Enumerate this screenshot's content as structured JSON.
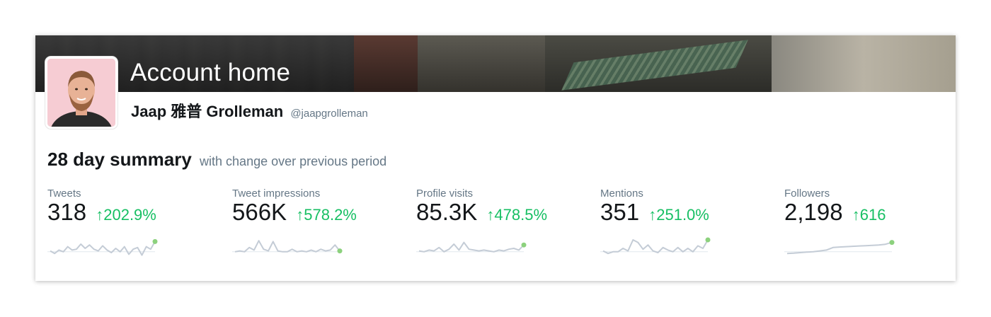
{
  "header": {
    "title": "Account home",
    "user_name": "Jaap 雅普 Grolleman",
    "user_handle": "@jaapgrolleman"
  },
  "summary": {
    "title": "28 day summary",
    "subtitle": "with change over previous period"
  },
  "metrics": [
    {
      "label": "Tweets",
      "value": "318",
      "arrow": "↑",
      "change": "202.9%",
      "spark": [
        0.35,
        0.2,
        0.4,
        0.3,
        0.6,
        0.4,
        0.45,
        0.75,
        0.5,
        0.7,
        0.45,
        0.35,
        0.65,
        0.4,
        0.25,
        0.5,
        0.3,
        0.6,
        0.15,
        0.45,
        0.55,
        0.1,
        0.6,
        0.45,
        0.9
      ]
    },
    {
      "label": "Tweet impressions",
      "value": "566K",
      "arrow": "↑",
      "change": "578.2%",
      "spark": [
        0.3,
        0.35,
        0.3,
        0.55,
        0.4,
        0.95,
        0.45,
        0.35,
        0.9,
        0.35,
        0.3,
        0.3,
        0.45,
        0.3,
        0.35,
        0.3,
        0.4,
        0.3,
        0.45,
        0.35,
        0.4,
        0.7,
        0.35
      ]
    },
    {
      "label": "Profile visits",
      "value": "85.3K",
      "arrow": "↑",
      "change": "478.5%",
      "spark": [
        0.35,
        0.3,
        0.4,
        0.35,
        0.55,
        0.3,
        0.45,
        0.75,
        0.4,
        0.85,
        0.45,
        0.4,
        0.35,
        0.4,
        0.35,
        0.3,
        0.4,
        0.35,
        0.45,
        0.5,
        0.4,
        0.7
      ]
    },
    {
      "label": "Mentions",
      "value": "351",
      "arrow": "↑",
      "change": "251.0%",
      "spark": [
        0.35,
        0.2,
        0.3,
        0.3,
        0.5,
        0.35,
        1.0,
        0.85,
        0.45,
        0.7,
        0.35,
        0.25,
        0.55,
        0.4,
        0.3,
        0.55,
        0.3,
        0.5,
        0.3,
        0.65,
        0.5,
        1.0
      ]
    },
    {
      "label": "Followers",
      "value": "2,198",
      "arrow": "↑",
      "change": "616",
      "spark": [
        0.2,
        0.22,
        0.25,
        0.28,
        0.3,
        0.35,
        0.4,
        0.55,
        0.58,
        0.6,
        0.62,
        0.64,
        0.66,
        0.68,
        0.7,
        0.74,
        0.85
      ]
    }
  ],
  "colors": {
    "positive": "#17bf63",
    "spark_line": "#c4ccd6",
    "spark_dot": "#8cd17d",
    "text_secondary": "#657786"
  }
}
